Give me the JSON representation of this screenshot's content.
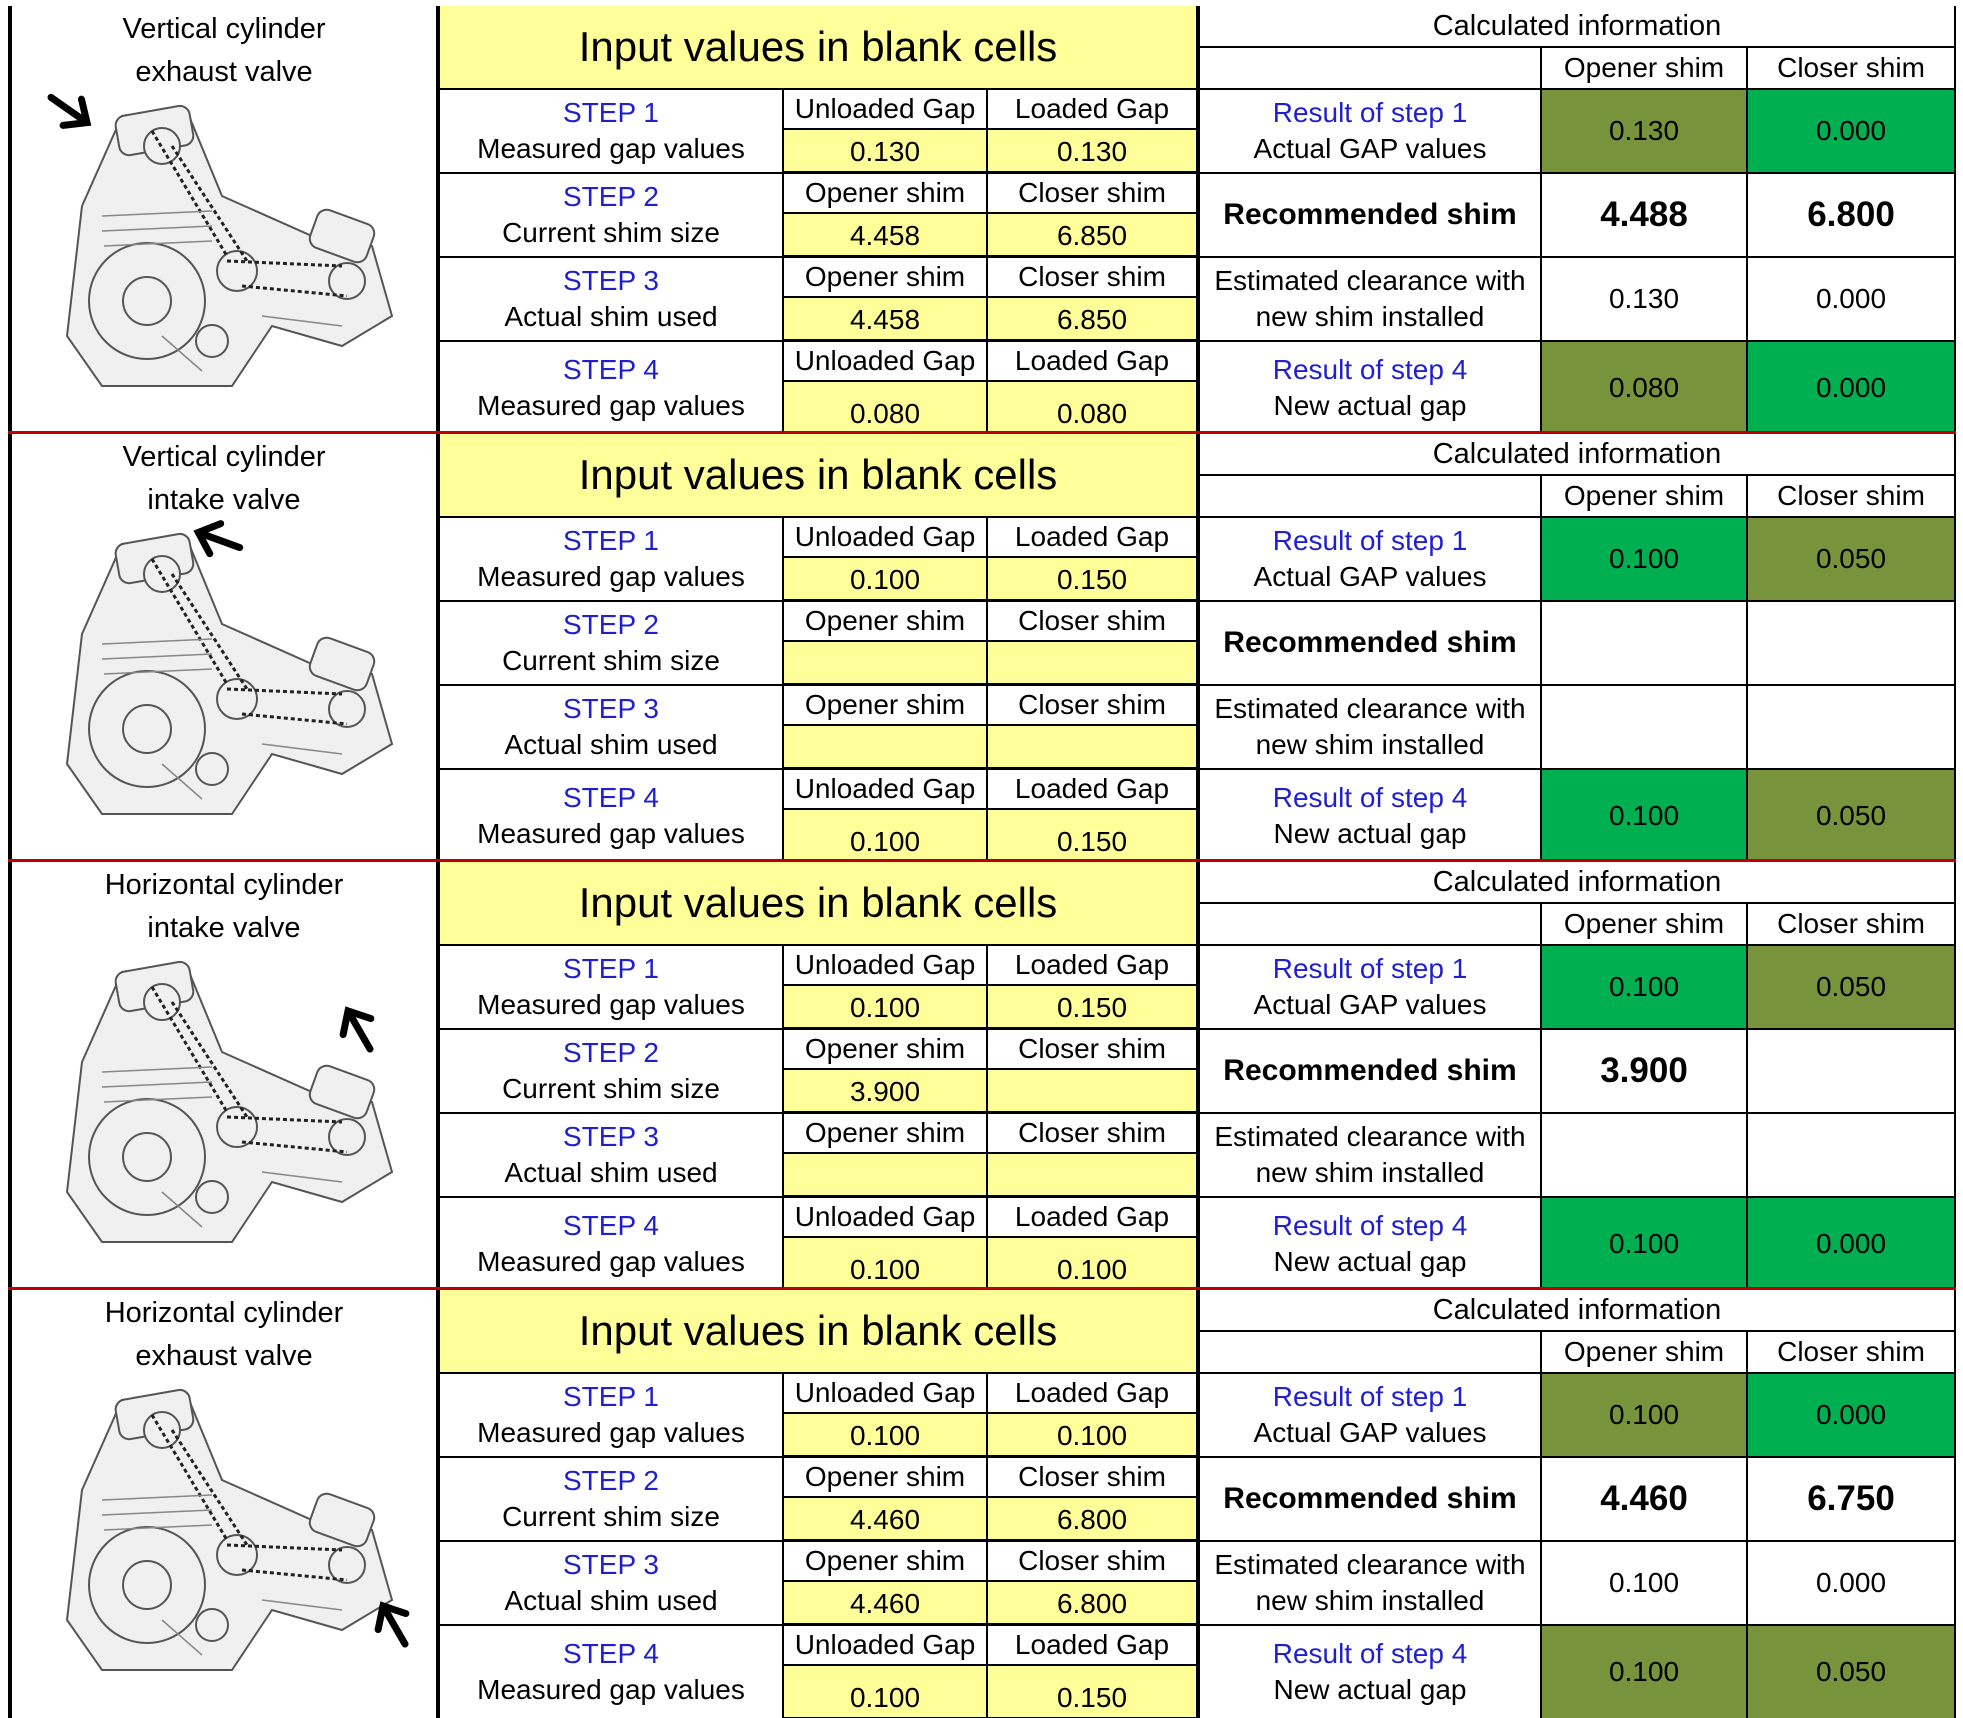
{
  "labels": {
    "banner": "Input values in blank cells",
    "calc_header": "Calculated information",
    "opener_shim": "Opener shim",
    "closer_shim": "Closer shim",
    "unloaded_gap": "Unloaded Gap",
    "loaded_gap": "Loaded Gap",
    "step1": "STEP 1",
    "step1_desc": "Measured gap values",
    "step2": "STEP 2",
    "step2_desc": "Current shim size",
    "step3": "STEP 3",
    "step3_desc": "Actual shim used",
    "step4": "STEP 4",
    "step4_desc": "Measured gap values",
    "result1": "Result of step 1",
    "result1_desc": "Actual GAP values",
    "recommended": "Recommended shim",
    "estimated_1": "Estimated clearance with",
    "estimated_2": "new shim installed",
    "result4": "Result of step 4",
    "result4_desc": "New actual  gap"
  },
  "colors": {
    "yellow": "#ffff99",
    "olive": "#77933c",
    "green": "#00b050",
    "blue_text": "#1f1fcf",
    "separator": "#c00000"
  },
  "sections": [
    {
      "title_1": "Vertical cylinder",
      "title_2": "exhaust valve",
      "arrow_icon": "arrow-pointing-to-vertical-exhaust",
      "step1": [
        "0.130",
        "0.130"
      ],
      "step2": [
        "4.458",
        "6.850"
      ],
      "step3": [
        "4.458",
        "6.850"
      ],
      "step4": [
        "0.080",
        "0.080"
      ],
      "result1": [
        "0.130",
        "0.000"
      ],
      "result1_colors": [
        "olive",
        "green"
      ],
      "recommended": [
        "4.488",
        "6.800"
      ],
      "estimated": [
        "0.130",
        "0.000"
      ],
      "result4": [
        "0.080",
        "0.000"
      ],
      "result4_colors": [
        "olive",
        "green"
      ]
    },
    {
      "title_1": "Vertical cylinder",
      "title_2": "intake valve",
      "arrow_icon": "arrow-pointing-to-vertical-intake",
      "step1": [
        "0.100",
        "0.150"
      ],
      "step2": [
        "",
        ""
      ],
      "step3": [
        "",
        ""
      ],
      "step4": [
        "0.100",
        "0.150"
      ],
      "result1": [
        "0.100",
        "0.050"
      ],
      "result1_colors": [
        "green",
        "olive"
      ],
      "recommended": [
        "",
        ""
      ],
      "estimated": [
        "",
        ""
      ],
      "result4": [
        "0.100",
        "0.050"
      ],
      "result4_colors": [
        "green",
        "olive"
      ]
    },
    {
      "title_1": "Horizontal cylinder",
      "title_2": "intake valve",
      "arrow_icon": "arrow-pointing-to-horizontal-intake",
      "step1": [
        "0.100",
        "0.150"
      ],
      "step2": [
        "3.900",
        ""
      ],
      "step3": [
        "",
        ""
      ],
      "step4": [
        "0.100",
        "0.100"
      ],
      "result1": [
        "0.100",
        "0.050"
      ],
      "result1_colors": [
        "green",
        "olive"
      ],
      "recommended": [
        "3.900",
        ""
      ],
      "estimated": [
        "",
        ""
      ],
      "result4": [
        "0.100",
        "0.000"
      ],
      "result4_colors": [
        "green",
        "green"
      ]
    },
    {
      "title_1": "Horizontal cylinder",
      "title_2": "exhaust valve",
      "arrow_icon": "arrow-pointing-to-horizontal-exhaust",
      "step1": [
        "0.100",
        "0.100"
      ],
      "step2": [
        "4.460",
        "6.800"
      ],
      "step3": [
        "4.460",
        "6.800"
      ],
      "step4": [
        "0.100",
        "0.150"
      ],
      "result1": [
        "0.100",
        "0.000"
      ],
      "result1_colors": [
        "olive",
        "green"
      ],
      "recommended": [
        "4.460",
        "6.750"
      ],
      "estimated": [
        "0.100",
        "0.000"
      ],
      "result4": [
        "0.100",
        "0.050"
      ],
      "result4_colors": [
        "olive",
        "olive"
      ]
    }
  ]
}
